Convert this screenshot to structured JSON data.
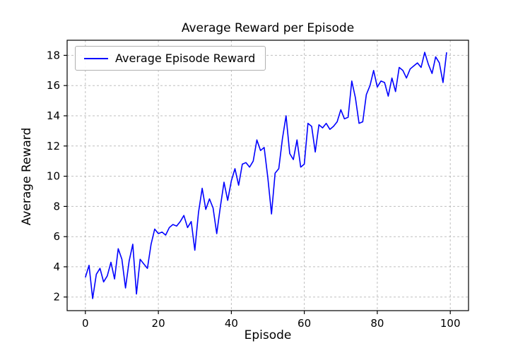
{
  "chart_data": {
    "type": "line",
    "title": "Average Reward per Episode",
    "xlabel": "Episode",
    "ylabel": "Average Reward",
    "legend": [
      "Average Episode Reward"
    ],
    "legend_position": "upper left",
    "grid": true,
    "line_color": "#0000ff",
    "xlim": [
      -5,
      105
    ],
    "ylim": [
      1.1,
      19.0
    ],
    "xticks": [
      0,
      20,
      40,
      60,
      80,
      100
    ],
    "yticks": [
      2,
      4,
      6,
      8,
      10,
      12,
      14,
      16,
      18
    ],
    "x": [
      0,
      1,
      2,
      3,
      4,
      5,
      6,
      7,
      8,
      9,
      10,
      11,
      12,
      13,
      14,
      15,
      16,
      17,
      18,
      19,
      20,
      21,
      22,
      23,
      24,
      25,
      26,
      27,
      28,
      29,
      30,
      31,
      32,
      33,
      34,
      35,
      36,
      37,
      38,
      39,
      40,
      41,
      42,
      43,
      44,
      45,
      46,
      47,
      48,
      49,
      50,
      51,
      52,
      53,
      54,
      55,
      56,
      57,
      58,
      59,
      60,
      61,
      62,
      63,
      64,
      65,
      66,
      67,
      68,
      69,
      70,
      71,
      72,
      73,
      74,
      75,
      76,
      77,
      78,
      79,
      80,
      81,
      82,
      83,
      84,
      85,
      86,
      87,
      88,
      89,
      90,
      91,
      92,
      93,
      94,
      95,
      96,
      97,
      98,
      99
    ],
    "values": [
      3.3,
      4.1,
      1.9,
      3.5,
      3.9,
      3.0,
      3.4,
      4.3,
      3.2,
      5.2,
      4.5,
      2.6,
      4.4,
      5.5,
      2.2,
      4.5,
      4.2,
      3.9,
      5.5,
      6.5,
      6.2,
      6.3,
      6.1,
      6.6,
      6.8,
      6.7,
      7.0,
      7.4,
      6.6,
      7.0,
      5.1,
      7.6,
      9.2,
      7.8,
      8.5,
      7.9,
      6.2,
      8.0,
      9.6,
      8.4,
      9.7,
      10.5,
      9.4,
      10.8,
      10.9,
      10.6,
      11.0,
      12.4,
      11.7,
      11.9,
      9.9,
      7.5,
      10.2,
      10.5,
      12.5,
      14.0,
      11.5,
      11.1,
      12.4,
      10.6,
      10.8,
      13.5,
      13.3,
      11.6,
      13.4,
      13.2,
      13.5,
      13.1,
      13.3,
      13.6,
      14.4,
      13.8,
      13.9,
      16.3,
      15.2,
      13.5,
      13.6,
      15.4,
      16.0,
      17.0,
      15.9,
      16.3,
      16.2,
      15.3,
      16.5,
      15.6,
      17.2,
      17.0,
      16.5,
      17.1,
      17.3,
      17.5,
      17.2,
      18.2,
      17.4,
      16.8,
      17.9,
      17.5,
      16.2,
      18.2
    ]
  }
}
